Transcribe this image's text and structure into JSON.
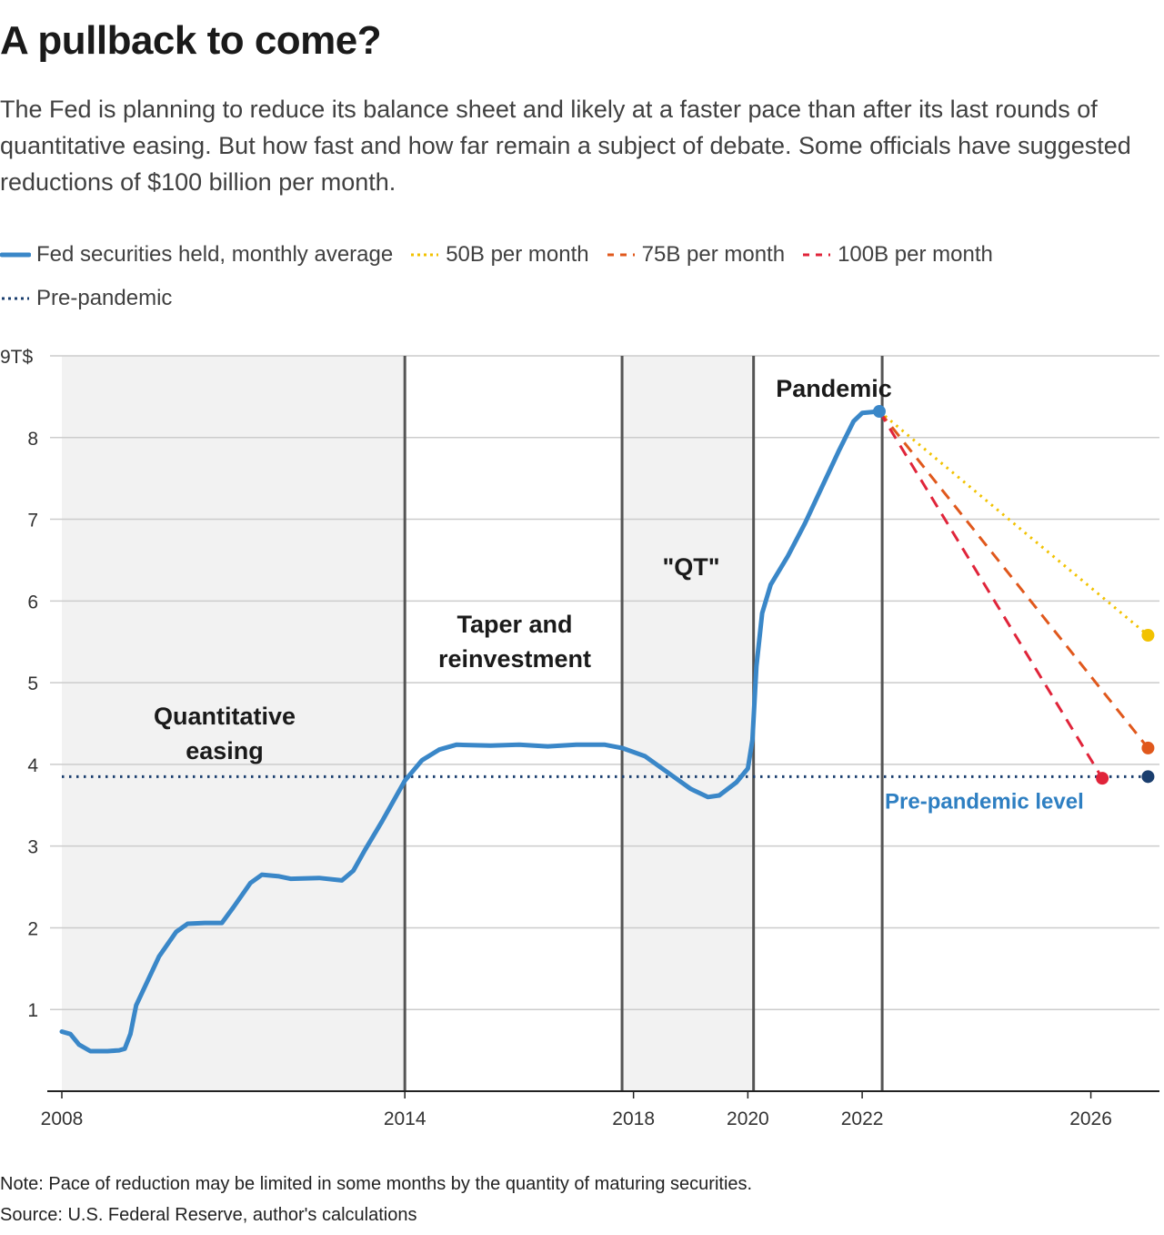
{
  "title": "A pullback to come?",
  "subtitle": "The Fed is planning to reduce its balance sheet and likely at a faster pace than after its last rounds of quantitative easing. But how fast and how far remain a subject of debate. Some officials have suggested reductions of $100 billion per month.",
  "legend": {
    "items": [
      {
        "label": "Fed securities held, monthly average",
        "color": "#3a87c8",
        "style": "solid"
      },
      {
        "label": "50B per month",
        "color": "#f2c200",
        "style": "dotted"
      },
      {
        "label": "75B per month",
        "color": "#e0581c",
        "style": "dashed"
      },
      {
        "label": "100B per month",
        "color": "#e0243a",
        "style": "dashed"
      },
      {
        "label": "Pre-pandemic",
        "color": "#1a3e6e",
        "style": "dotted"
      }
    ]
  },
  "notes": {
    "note": "Note: Pace of reduction may be limited in some months by the quantity of maturing securities.",
    "source": "Source: U.S. Federal Reserve, author's calculations"
  },
  "chart_data": {
    "type": "line",
    "unit_label": "9T$",
    "ylim": [
      0,
      9
    ],
    "xlim": [
      2008.0,
      2027.2
    ],
    "y_ticks": [
      1,
      2,
      3,
      4,
      5,
      6,
      7,
      8
    ],
    "x_ticks": [
      "2008",
      "2014",
      "2018",
      "2020",
      "2022",
      "2026"
    ],
    "x_tick_values": [
      2008,
      2014,
      2018,
      2020,
      2022,
      2026
    ],
    "grid": true,
    "legend_position": "top",
    "periods": [
      {
        "label": "Quantitative easing",
        "start": 2008.0,
        "end": 2014.0,
        "shaded": true,
        "lines": [
          "Quantitative",
          "easing"
        ]
      },
      {
        "label": "Taper and reinvestment",
        "start": 2014.0,
        "end": 2017.8,
        "shaded": false,
        "lines": [
          "Taper and",
          "reinvestment"
        ]
      },
      {
        "label": "\"QT\"",
        "start": 2017.8,
        "end": 2020.1,
        "shaded": true,
        "lines": [
          "\"QT\""
        ]
      },
      {
        "label": "Pandemic",
        "start": 2020.1,
        "end": 2022.35,
        "shaded": false,
        "lines": [
          "Pandemic"
        ]
      }
    ],
    "reference_line": {
      "label": "Pre-pandemic level",
      "value": 3.85,
      "color": "#1a3e6e"
    },
    "series": [
      {
        "name": "Fed securities held, monthly average",
        "color": "#3a87c8",
        "points": [
          [
            2008.0,
            0.73
          ],
          [
            2008.15,
            0.7
          ],
          [
            2008.3,
            0.57
          ],
          [
            2008.5,
            0.49
          ],
          [
            2008.8,
            0.49
          ],
          [
            2009.0,
            0.5
          ],
          [
            2009.1,
            0.52
          ],
          [
            2009.2,
            0.7
          ],
          [
            2009.3,
            1.05
          ],
          [
            2009.5,
            1.35
          ],
          [
            2009.7,
            1.65
          ],
          [
            2010.0,
            1.95
          ],
          [
            2010.2,
            2.05
          ],
          [
            2010.5,
            2.06
          ],
          [
            2010.8,
            2.06
          ],
          [
            2011.0,
            2.25
          ],
          [
            2011.3,
            2.55
          ],
          [
            2011.5,
            2.65
          ],
          [
            2011.8,
            2.63
          ],
          [
            2012.0,
            2.6
          ],
          [
            2012.5,
            2.61
          ],
          [
            2012.9,
            2.58
          ],
          [
            2013.1,
            2.7
          ],
          [
            2013.3,
            2.95
          ],
          [
            2013.6,
            3.3
          ],
          [
            2014.0,
            3.8
          ],
          [
            2014.3,
            4.05
          ],
          [
            2014.6,
            4.18
          ],
          [
            2014.9,
            4.24
          ],
          [
            2015.5,
            4.23
          ],
          [
            2016.0,
            4.24
          ],
          [
            2016.5,
            4.22
          ],
          [
            2017.0,
            4.24
          ],
          [
            2017.5,
            4.24
          ],
          [
            2017.8,
            4.2
          ],
          [
            2018.2,
            4.1
          ],
          [
            2018.6,
            3.9
          ],
          [
            2019.0,
            3.7
          ],
          [
            2019.3,
            3.6
          ],
          [
            2019.5,
            3.62
          ],
          [
            2019.8,
            3.78
          ],
          [
            2020.0,
            3.95
          ],
          [
            2020.08,
            4.3
          ],
          [
            2020.15,
            5.2
          ],
          [
            2020.25,
            5.85
          ],
          [
            2020.4,
            6.2
          ],
          [
            2020.7,
            6.55
          ],
          [
            2021.0,
            6.95
          ],
          [
            2021.3,
            7.4
          ],
          [
            2021.6,
            7.85
          ],
          [
            2021.85,
            8.2
          ],
          [
            2022.0,
            8.3
          ],
          [
            2022.3,
            8.32
          ]
        ]
      },
      {
        "name": "50B per month",
        "color": "#f2c200",
        "style": "dotted",
        "points": [
          [
            2022.3,
            8.32
          ],
          [
            2027.0,
            5.58
          ]
        ]
      },
      {
        "name": "75B per month",
        "color": "#e0581c",
        "style": "dashed",
        "points": [
          [
            2022.3,
            8.32
          ],
          [
            2027.0,
            4.2
          ]
        ]
      },
      {
        "name": "100B per month",
        "color": "#e0243a",
        "style": "dashed",
        "points": [
          [
            2022.3,
            8.32
          ],
          [
            2026.2,
            3.83
          ]
        ]
      },
      {
        "name": "Pre-pandemic",
        "color": "#1a3e6e",
        "style": "dotted",
        "points": [
          [
            2008.0,
            3.85
          ],
          [
            2027.0,
            3.85
          ]
        ]
      }
    ]
  }
}
